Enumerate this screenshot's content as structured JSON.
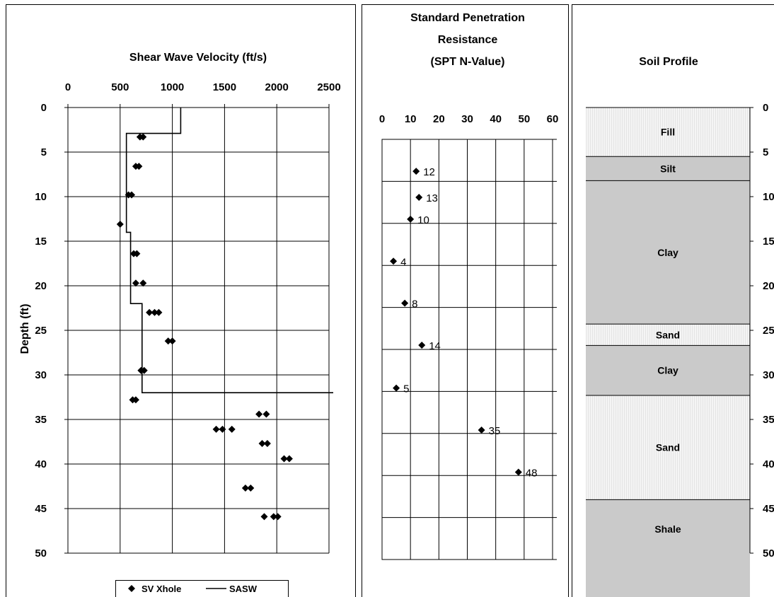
{
  "chart_data": [
    {
      "type": "scatter",
      "title": "Shear Wave Velocity (ft/s)",
      "xlabel": "",
      "ylabel": "Depth (ft)",
      "xlim": [
        0,
        2500
      ],
      "ylim": [
        0,
        50
      ],
      "y_inverted": true,
      "x_ticks": [
        0,
        500,
        1000,
        1500,
        2000,
        2500
      ],
      "y_ticks": [
        0,
        5,
        10,
        15,
        20,
        25,
        30,
        35,
        40,
        45,
        50
      ],
      "grid": true,
      "legend": "bottom",
      "series": [
        {
          "name": "SV Xhole",
          "marker": "diamond",
          "points": [
            [
              690,
              3.3
            ],
            [
              720,
              3.3
            ],
            [
              650,
              6.6
            ],
            [
              680,
              6.6
            ],
            [
              580,
              9.8
            ],
            [
              610,
              9.8
            ],
            [
              500,
              13.1
            ],
            [
              630,
              16.4
            ],
            [
              660,
              16.4
            ],
            [
              650,
              19.7
            ],
            [
              720,
              19.7
            ],
            [
              780,
              23.0
            ],
            [
              830,
              23.0
            ],
            [
              870,
              23.0
            ],
            [
              960,
              26.2
            ],
            [
              1000,
              26.2
            ],
            [
              700,
              29.5
            ],
            [
              730,
              29.5
            ],
            [
              620,
              32.8
            ],
            [
              650,
              32.8
            ],
            [
              1830,
              34.4
            ],
            [
              1900,
              34.4
            ],
            [
              1420,
              36.1
            ],
            [
              1480,
              36.1
            ],
            [
              1570,
              36.1
            ],
            [
              1860,
              37.7
            ],
            [
              1910,
              37.7
            ],
            [
              2070,
              39.4
            ],
            [
              2120,
              39.4
            ],
            [
              1700,
              42.7
            ],
            [
              1750,
              42.7
            ],
            [
              1880,
              45.9
            ],
            [
              1970,
              45.9
            ],
            [
              2010,
              45.9
            ]
          ]
        },
        {
          "name": "SASW",
          "type": "step-line",
          "points": [
            [
              1080,
              0
            ],
            [
              1080,
              2.9
            ],
            [
              560,
              2.9
            ],
            [
              560,
              14.0
            ],
            [
              600,
              14.0
            ],
            [
              600,
              22.0
            ],
            [
              710,
              22.0
            ],
            [
              710,
              32.0
            ],
            [
              2500,
              32.0
            ]
          ]
        }
      ]
    },
    {
      "type": "scatter",
      "title": "Standard Penetration Resistance (SPT N-Value)",
      "title_lines": [
        "Standard Penetration",
        "Resistance",
        "(SPT N-Value)"
      ],
      "xlabel": "",
      "ylabel": "",
      "xlim": [
        0,
        60
      ],
      "ylim": [
        0,
        50
      ],
      "y_inverted": true,
      "x_ticks": [
        0,
        10,
        20,
        30,
        40,
        50,
        60
      ],
      "grid": true,
      "series": [
        {
          "name": "",
          "marker": "diamond",
          "points": [
            {
              "x": 12,
              "y": 3.8,
              "label": "12"
            },
            {
              "x": 13,
              "y": 6.9,
              "label": "13"
            },
            {
              "x": 10,
              "y": 9.5,
              "label": "10"
            },
            {
              "x": 4,
              "y": 14.5,
              "label": "4"
            },
            {
              "x": 8,
              "y": 19.5,
              "label": "8"
            },
            {
              "x": 14,
              "y": 24.5,
              "label": "14"
            },
            {
              "x": 5,
              "y": 29.6,
              "label": "5"
            },
            {
              "x": 35,
              "y": 34.6,
              "label": "35"
            },
            {
              "x": 48,
              "y": 39.6,
              "label": "48"
            }
          ]
        }
      ]
    },
    {
      "type": "table",
      "title": "Soil Profile",
      "y_ticks": [
        0,
        5,
        10,
        15,
        20,
        25,
        30,
        35,
        40,
        45,
        50
      ],
      "y_tick_labels": [
        "0",
        "5",
        "10",
        "15",
        "20",
        "25",
        "30",
        "35",
        "40",
        "45",
        "50"
      ],
      "ylim": [
        0,
        50
      ],
      "layers": [
        {
          "name": "Fill",
          "top": 0,
          "bottom": 5.5,
          "color": "#e4e4e4",
          "pattern": "hatch"
        },
        {
          "name": "Silt",
          "top": 5.5,
          "bottom": 8.2,
          "color": "#c9c9c9"
        },
        {
          "name": "Clay",
          "top": 8.2,
          "bottom": 24.3,
          "color": "#cacaca"
        },
        {
          "name": "Sand",
          "top": 24.3,
          "bottom": 26.7,
          "color": "#f2f2f2",
          "pattern": "hatch"
        },
        {
          "name": "Clay",
          "top": 26.7,
          "bottom": 32.3,
          "color": "#cacaca"
        },
        {
          "name": "Sand",
          "top": 32.3,
          "bottom": 44.0,
          "color": "#f2f2f2",
          "pattern": "hatch"
        },
        {
          "name": "Shale",
          "top": 44.0,
          "bottom": 55.0,
          "color": "#cacaca"
        }
      ]
    }
  ]
}
